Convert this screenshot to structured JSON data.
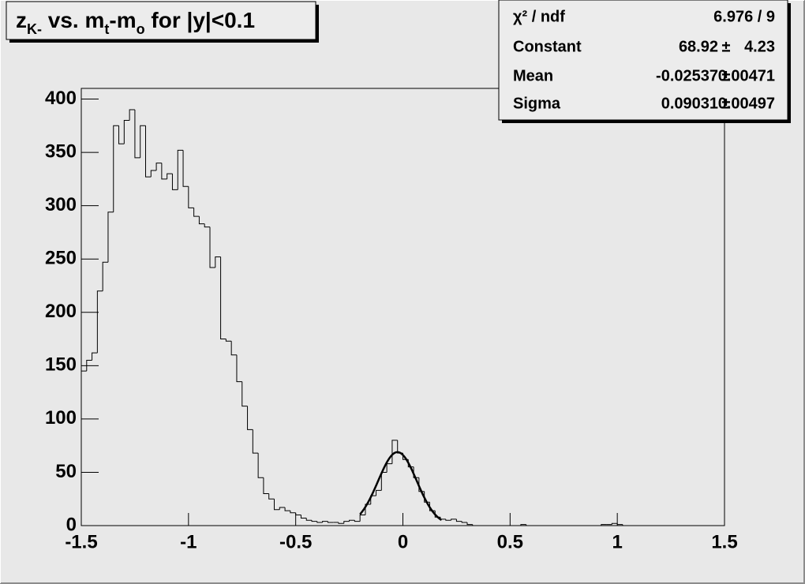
{
  "chart_data": {
    "type": "histogram",
    "title": [
      {
        "text": "z"
      },
      {
        "text": "K-",
        "sub": true
      },
      {
        "text": " vs. m"
      },
      {
        "text": "t",
        "sub": true
      },
      {
        "text": "-m"
      },
      {
        "text": "o",
        "sub": true
      },
      {
        "text": " for |y|<0.1"
      }
    ],
    "bins": [
      -1.5,
      -1.475,
      -1.45,
      -1.425,
      -1.4,
      -1.375,
      -1.35,
      -1.325,
      -1.3,
      -1.275,
      -1.25,
      -1.225,
      -1.2,
      -1.175,
      -1.15,
      -1.125,
      -1.1,
      -1.075,
      -1.05,
      -1.025,
      -1,
      -0.975,
      -0.95,
      -0.925,
      -0.9,
      -0.875,
      -0.85,
      -0.825,
      -0.8,
      -0.775,
      -0.75,
      -0.725,
      -0.7,
      -0.675,
      -0.65,
      -0.625,
      -0.6,
      -0.575,
      -0.55,
      -0.525,
      -0.5,
      -0.475,
      -0.45,
      -0.425,
      -0.4,
      -0.375,
      -0.35,
      -0.325,
      -0.3,
      -0.275,
      -0.25,
      -0.225,
      -0.2,
      -0.175,
      -0.15,
      -0.125,
      -0.1,
      -0.075,
      -0.05,
      -0.025,
      0,
      0.025,
      0.05,
      0.075,
      0.1,
      0.125,
      0.15,
      0.175,
      0.2,
      0.225,
      0.25,
      0.275,
      0.3,
      0.325,
      0.35,
      0.375,
      0.4,
      0.425,
      0.45,
      0.475,
      0.5,
      0.525,
      0.55,
      0.575,
      0.6,
      0.625,
      0.65,
      0.675,
      0.7,
      0.725,
      0.75,
      0.775,
      0.8,
      0.825,
      0.85,
      0.875,
      0.9,
      0.925,
      0.95,
      0.975,
      1,
      1.025,
      1.05,
      1.075,
      1.1,
      1.125,
      1.15,
      1.175,
      1.2,
      1.225,
      1.25,
      1.275,
      1.3,
      1.325,
      1.35,
      1.375,
      1.4,
      1.425,
      1.45,
      1.475,
      1.5
    ],
    "values": [
      145,
      155,
      162,
      220,
      247,
      294,
      375,
      358,
      380,
      390,
      345,
      375,
      327,
      333,
      340,
      325,
      330,
      315,
      352,
      318,
      298,
      290,
      283,
      280,
      242,
      252,
      175,
      173,
      160,
      135,
      112,
      90,
      68,
      45,
      30,
      25,
      15,
      17,
      14,
      12,
      10,
      7,
      5,
      4,
      3,
      4,
      3,
      3,
      2,
      4,
      5,
      4,
      10,
      20,
      28,
      33,
      50,
      58,
      80,
      68,
      62,
      55,
      45,
      32,
      22,
      14,
      8,
      6,
      5,
      6,
      4,
      3,
      1,
      0,
      0,
      0,
      0,
      0,
      0,
      0,
      0,
      0,
      1,
      0,
      0,
      0,
      0,
      0,
      0,
      0,
      0,
      0,
      0,
      0,
      0,
      0,
      0,
      1,
      1,
      2,
      1,
      0,
      0,
      0,
      0,
      0,
      0,
      0,
      0,
      0,
      0,
      0,
      0,
      0,
      0,
      0,
      0,
      0,
      0,
      0,
      0
    ],
    "color": "#000000",
    "xlim": [
      -1.5,
      1.5
    ],
    "ylim": [
      0,
      410
    ],
    "xticks": [
      -1.5,
      -1,
      -0.5,
      0,
      0.5,
      1,
      1.5
    ],
    "yticks": [
      0,
      50,
      100,
      150,
      200,
      250,
      300,
      350,
      400
    ],
    "fit_range": [
      -0.2,
      0.18
    ],
    "stats": {
      "separator": "±",
      "rows": [
        {
          "name": "χ² / ndf",
          "value": "6.976 / 9"
        },
        {
          "name": "Constant",
          "value": 68.92,
          "error": 4.23
        },
        {
          "name": "Mean",
          "value": -0.02537,
          "error": 0.00471
        },
        {
          "name": "Sigma",
          "value": 0.09031,
          "error": 0.00497
        }
      ]
    }
  }
}
